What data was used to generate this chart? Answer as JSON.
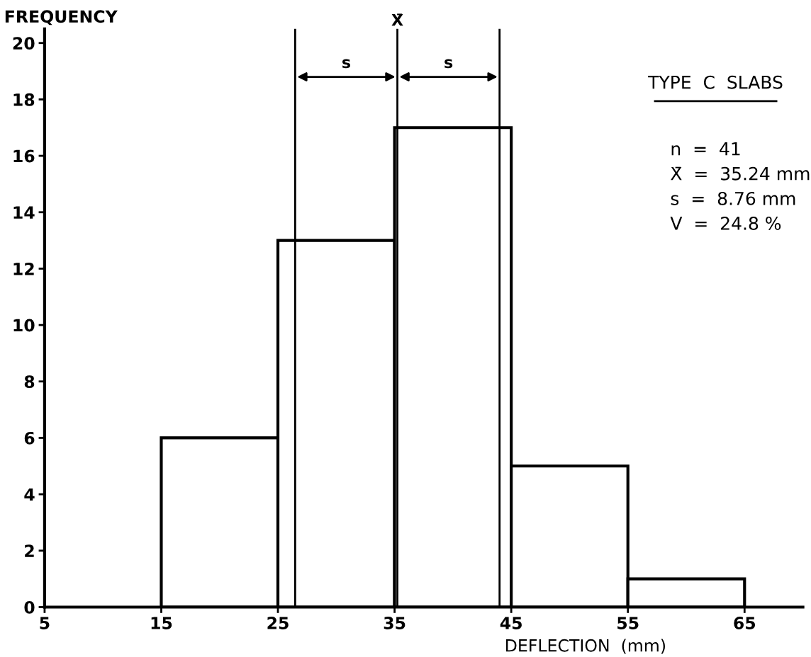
{
  "chart_data": {
    "type": "histogram",
    "bins": [
      15,
      25,
      35,
      45,
      55,
      65
    ],
    "values": [
      6,
      13,
      17,
      5,
      1
    ],
    "color": "#ffffff",
    "xlabel": "DEFLECTION  (mm)",
    "ylabel": "FREQUENCY",
    "xlim": [
      5,
      70
    ],
    "ylim": [
      0,
      20.5
    ],
    "xticks": [
      5,
      15,
      25,
      35,
      45,
      55,
      65
    ],
    "yticks": [
      0,
      2,
      4,
      6,
      8,
      10,
      12,
      14,
      16,
      18,
      20
    ],
    "ref_lines": [
      {
        "axis": "x",
        "value": 26.48,
        "label": null
      },
      {
        "axis": "x",
        "value": 35.24,
        "label": "X̄"
      },
      {
        "axis": "x",
        "value": 44,
        "label": null
      }
    ],
    "annotations": [
      "s",
      "s",
      "TYPE  C  SLABS",
      "n  =  41",
      "X̄  =  35.24 mm",
      "s  =  8.76 mm",
      "V  =  24.8 %"
    ],
    "grid": false,
    "legend": false
  }
}
